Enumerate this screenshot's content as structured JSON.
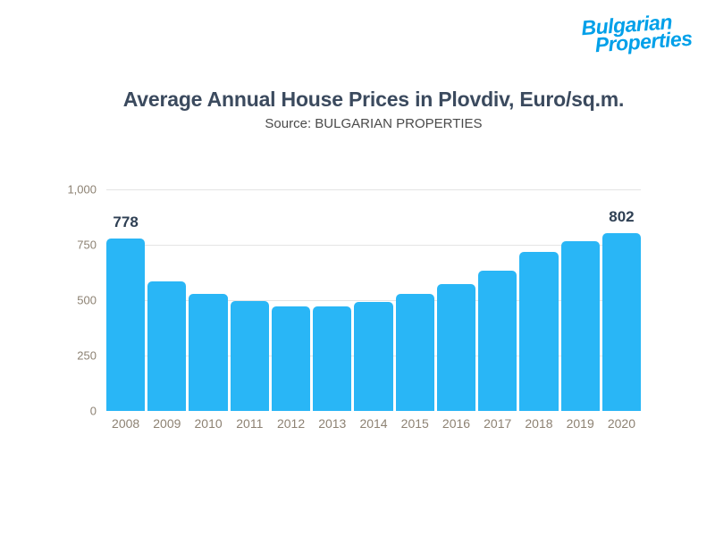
{
  "logo": {
    "line1": "Bulgarian",
    "line2": "Properties"
  },
  "header": {
    "title": "Average Annual House Prices in Plovdiv, Euro/sq.m.",
    "subtitle": "Source: BULGARIAN PROPERTIES"
  },
  "chart_data": {
    "type": "bar",
    "title": "Average Annual House Prices in Plovdiv, Euro/sq.m.",
    "subtitle": "Source: BULGARIAN PROPERTIES",
    "categories": [
      "2008",
      "2009",
      "2010",
      "2011",
      "2012",
      "2013",
      "2014",
      "2015",
      "2016",
      "2017",
      "2018",
      "2019",
      "2020"
    ],
    "values": [
      778,
      585,
      528,
      496,
      472,
      470,
      493,
      530,
      574,
      634,
      719,
      768,
      802
    ],
    "point_labels": [
      "778",
      "",
      "",
      "",
      "",
      "",
      "",
      "",
      "",
      "",
      "",
      "",
      "802"
    ],
    "xlabel": "",
    "ylabel": "",
    "ylim": [
      0,
      1000
    ],
    "y_ticks": [
      {
        "label": "1,000",
        "value": 1000
      },
      {
        "label": "750",
        "value": 750
      },
      {
        "label": "500",
        "value": 500
      },
      {
        "label": "250",
        "value": 250
      },
      {
        "label": "0",
        "value": 0
      }
    ],
    "grid": true,
    "legend": false,
    "bar_color": "#29B6F6"
  },
  "colors": {
    "bar": "#29B6F6",
    "logo_blue": "#00A0E9",
    "title_text": "#3B4A5E",
    "subtitle_text": "#4A4A4A",
    "axis_label": "#8D8273",
    "value_label": "#2F4054",
    "gridline": "#E4E4E4",
    "background": "#FFFFFF"
  }
}
